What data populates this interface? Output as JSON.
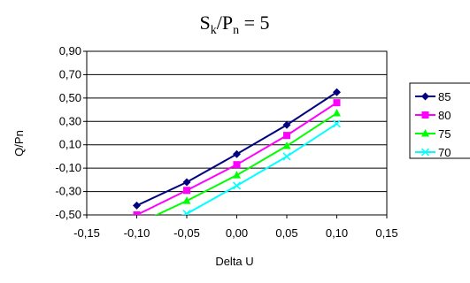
{
  "chart_data": {
    "type": "line",
    "title_main": "S",
    "title_sub1": "k",
    "title_mid": "/P",
    "title_sub2": "n",
    "title_tail": " = 5",
    "xlabel": "Delta U",
    "ylabel": "Q/Pn",
    "xlim": [
      -0.15,
      0.15
    ],
    "ylim": [
      -0.5,
      0.9
    ],
    "xticks": [
      -0.15,
      -0.1,
      -0.05,
      0.0,
      0.05,
      0.1,
      0.15
    ],
    "xtick_labels": [
      "-0,15",
      "-0,10",
      "-0,05",
      "0,00",
      "0,05",
      "0,10",
      "0,15"
    ],
    "yticks": [
      -0.5,
      -0.3,
      -0.1,
      0.1,
      0.3,
      0.5,
      0.7,
      0.9
    ],
    "ytick_labels": [
      "-0,50",
      "-0,30",
      "-0,10",
      "0,10",
      "0,30",
      "0,50",
      "0,70",
      "0,90"
    ],
    "grid": "horizontal",
    "legend_position": "right",
    "x": [
      -0.1,
      -0.05,
      0.0,
      0.05,
      0.1
    ],
    "series": [
      {
        "name": "85",
        "color": "#000080",
        "marker": "diamond",
        "values": [
          -0.42,
          -0.22,
          0.02,
          0.27,
          0.55
        ]
      },
      {
        "name": "80",
        "color": "#ff00ff",
        "marker": "square",
        "values": [
          -0.5,
          -0.29,
          -0.07,
          0.18,
          0.46
        ]
      },
      {
        "name": "75",
        "color": "#00ff00",
        "marker": "triangle",
        "values": [
          -0.58,
          -0.38,
          -0.16,
          0.09,
          0.37
        ]
      },
      {
        "name": "70",
        "color": "#00ffff",
        "marker": "x",
        "values": [
          -0.66,
          -0.49,
          -0.25,
          0.0,
          0.28
        ]
      }
    ]
  }
}
